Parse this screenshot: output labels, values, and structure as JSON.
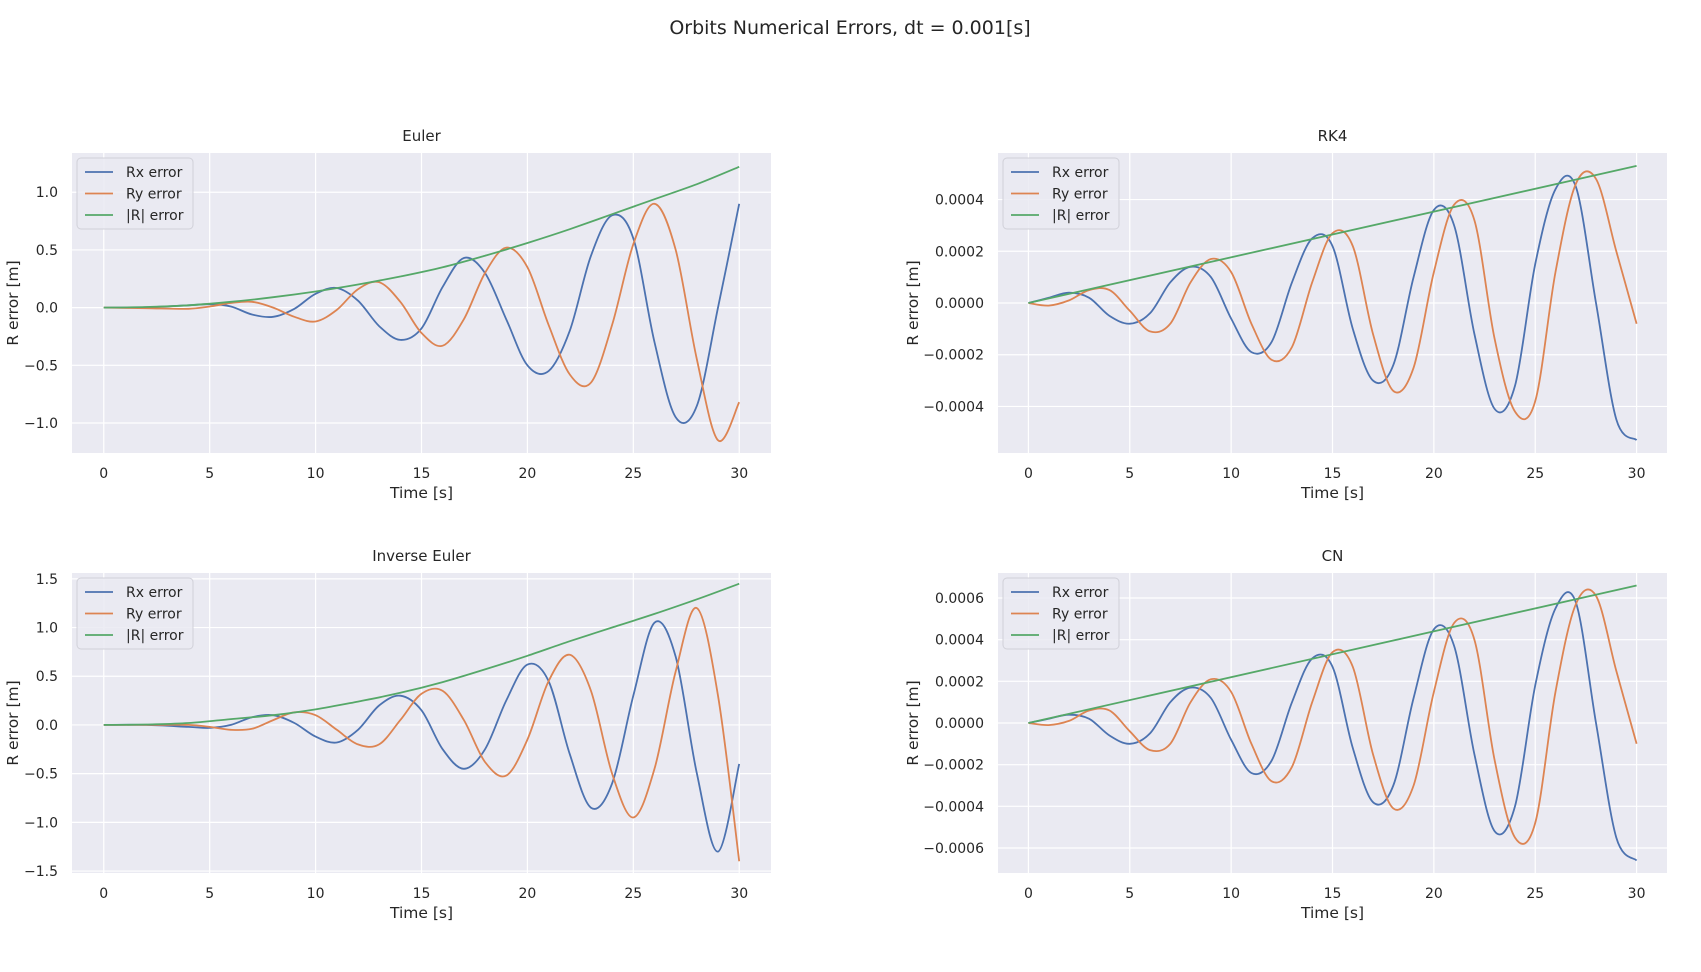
{
  "figure": {
    "suptitle": "Orbits Numerical Errors, dt = 0.001[s]"
  },
  "colors": {
    "rx": "#4c72b0",
    "ry": "#dd8452",
    "r": "#55a868",
    "axes_bg": "#eaeaf2",
    "grid": "#ffffff"
  },
  "chart_data": [
    {
      "type": "line",
      "title": "Euler",
      "xlabel": "Time [s]",
      "ylabel": "R error [m]",
      "xlim": [
        -1.5,
        31.5
      ],
      "ylim": [
        -1.26,
        1.34
      ],
      "xticks": [
        0,
        5,
        10,
        15,
        20,
        25,
        30
      ],
      "xtick_labels": [
        "0",
        "5",
        "10",
        "15",
        "20",
        "25",
        "30"
      ],
      "yticks": [
        -1.0,
        -0.5,
        0.0,
        0.5,
        1.0
      ],
      "ytick_labels": [
        "−1.0",
        "−0.5",
        "0.0",
        "0.5",
        "1.0"
      ],
      "grid": true,
      "legend": "top-left",
      "series": [
        {
          "name": "Rx error",
          "x": [
            0,
            2,
            4,
            5,
            6,
            7,
            8,
            9,
            10,
            11,
            12,
            13,
            14,
            15,
            16,
            17,
            18,
            19,
            20,
            21,
            22,
            23,
            24,
            25,
            26,
            27,
            28,
            29,
            30
          ],
          "y": [
            0,
            0.003,
            0.02,
            0.03,
            0.01,
            -0.06,
            -0.08,
            -0.01,
            0.12,
            0.17,
            0.06,
            -0.16,
            -0.28,
            -0.18,
            0.18,
            0.43,
            0.3,
            -0.1,
            -0.5,
            -0.55,
            -0.2,
            0.45,
            0.8,
            0.6,
            -0.3,
            -0.95,
            -0.85,
            0.0,
            0.9
          ]
        },
        {
          "name": "Ry error",
          "x": [
            0,
            2,
            4,
            5,
            6,
            7,
            8,
            9,
            10,
            11,
            12,
            13,
            14,
            15,
            16,
            17,
            18,
            19,
            20,
            21,
            22,
            23,
            24,
            25,
            26,
            27,
            28,
            29,
            30
          ],
          "y": [
            0,
            -0.005,
            -0.01,
            0.01,
            0.04,
            0.05,
            0.0,
            -0.08,
            -0.12,
            -0.02,
            0.16,
            0.22,
            0.05,
            -0.22,
            -0.33,
            -0.1,
            0.3,
            0.52,
            0.35,
            -0.15,
            -0.58,
            -0.65,
            -0.15,
            0.55,
            0.9,
            0.5,
            -0.45,
            -1.15,
            -0.82
          ]
        },
        {
          "name": "|R|  error",
          "x": [
            0,
            2,
            4,
            6,
            8,
            10,
            12,
            14,
            16,
            18,
            20,
            22,
            24,
            26,
            28,
            30
          ],
          "y": [
            0,
            0.005,
            0.02,
            0.05,
            0.09,
            0.14,
            0.2,
            0.27,
            0.35,
            0.45,
            0.56,
            0.68,
            0.81,
            0.94,
            1.07,
            1.22
          ]
        }
      ]
    },
    {
      "type": "line",
      "title": "RK4",
      "xlabel": "Time [s]",
      "ylabel": "R error [m]",
      "xlim": [
        -1.5,
        31.5
      ],
      "ylim": [
        -0.00058,
        0.00058
      ],
      "xticks": [
        0,
        5,
        10,
        15,
        20,
        25,
        30
      ],
      "xtick_labels": [
        "0",
        "5",
        "10",
        "15",
        "20",
        "25",
        "30"
      ],
      "yticks": [
        -0.0004,
        -0.0002,
        0.0,
        0.0002,
        0.0004
      ],
      "ytick_labels": [
        "−0.0004",
        "−0.0002",
        "0.0000",
        "0.0002",
        "0.0004"
      ],
      "grid": true,
      "legend": "top-left",
      "series": [
        {
          "name": "Rx error",
          "x": [
            0,
            1,
            2,
            3,
            4,
            5,
            6,
            7,
            8,
            9,
            10,
            11,
            12,
            13,
            14,
            15,
            16,
            17,
            18,
            19,
            20,
            21,
            22,
            23,
            24,
            25,
            26,
            27,
            28,
            29,
            30
          ],
          "y": [
            0,
            2e-05,
            4e-05,
            2e-05,
            -5e-05,
            -8e-05,
            -4e-05,
            8e-05,
            0.00014,
            0.0001,
            -6e-05,
            -0.00019,
            -0.00015,
            8e-05,
            0.00025,
            0.00022,
            -0.0001,
            -0.0003,
            -0.00024,
            0.0001,
            0.00036,
            0.0003,
            -0.00012,
            -0.00041,
            -0.00032,
            0.00015,
            0.00044,
            0.00045,
            0.0,
            -0.00045,
            -0.00053
          ]
        },
        {
          "name": "Ry error",
          "x": [
            0,
            1,
            2,
            3,
            4,
            5,
            6,
            7,
            8,
            9,
            10,
            11,
            12,
            13,
            14,
            15,
            16,
            17,
            18,
            19,
            20,
            21,
            22,
            23,
            24,
            25,
            26,
            27,
            28,
            29,
            30
          ],
          "y": [
            0,
            -1e-05,
            1e-05,
            5e-05,
            5e-05,
            -3e-05,
            -0.00011,
            -8e-05,
            8e-05,
            0.00017,
            0.00012,
            -8e-05,
            -0.00022,
            -0.00017,
            8e-05,
            0.00027,
            0.00022,
            -0.00012,
            -0.00034,
            -0.00025,
            0.00012,
            0.00038,
            0.00032,
            -0.00014,
            -0.00042,
            -0.00038,
            0.00012,
            0.00046,
            0.00048,
            0.0002,
            -8e-05
          ]
        },
        {
          "name": "|R|  error",
          "x": [
            0,
            30
          ],
          "y": [
            0,
            0.00053
          ]
        }
      ]
    },
    {
      "type": "line",
      "title": "Inverse Euler",
      "xlabel": "Time [s]",
      "ylabel": "R error [m]",
      "xlim": [
        -1.5,
        31.5
      ],
      "ylim": [
        -1.52,
        1.56
      ],
      "xticks": [
        0,
        5,
        10,
        15,
        20,
        25,
        30
      ],
      "xtick_labels": [
        "0",
        "5",
        "10",
        "15",
        "20",
        "25",
        "30"
      ],
      "yticks": [
        -1.5,
        -1.0,
        -0.5,
        0.0,
        0.5,
        1.0,
        1.5
      ],
      "ytick_labels": [
        "−1.5",
        "−1.0",
        "−0.5",
        "0.0",
        "0.5",
        "1.0",
        "1.5"
      ],
      "grid": true,
      "legend": "top-left",
      "series": [
        {
          "name": "Rx error",
          "x": [
            0,
            2,
            4,
            5,
            6,
            7,
            8,
            9,
            10,
            11,
            12,
            13,
            14,
            15,
            16,
            17,
            18,
            19,
            20,
            21,
            22,
            23,
            24,
            25,
            26,
            27,
            28,
            29,
            30
          ],
          "y": [
            0,
            0.0,
            -0.02,
            -0.03,
            0.0,
            0.08,
            0.1,
            0.02,
            -0.12,
            -0.18,
            -0.05,
            0.2,
            0.3,
            0.15,
            -0.25,
            -0.45,
            -0.25,
            0.25,
            0.62,
            0.45,
            -0.3,
            -0.85,
            -0.6,
            0.3,
            1.05,
            0.7,
            -0.5,
            -1.3,
            -0.4
          ]
        },
        {
          "name": "Ry error",
          "x": [
            0,
            2,
            4,
            5,
            6,
            7,
            8,
            9,
            10,
            11,
            12,
            13,
            14,
            15,
            16,
            17,
            18,
            19,
            20,
            21,
            22,
            23,
            24,
            25,
            26,
            27,
            28,
            29,
            30
          ],
          "y": [
            0,
            0.0,
            0.0,
            -0.02,
            -0.05,
            -0.04,
            0.05,
            0.13,
            0.1,
            -0.05,
            -0.2,
            -0.2,
            0.05,
            0.32,
            0.35,
            0.05,
            -0.38,
            -0.52,
            -0.15,
            0.45,
            0.72,
            0.35,
            -0.5,
            -0.95,
            -0.45,
            0.55,
            1.2,
            0.3,
            -1.4
          ]
        },
        {
          "name": "|R|  error",
          "x": [
            0,
            2,
            4,
            6,
            8,
            10,
            12,
            14,
            16,
            18,
            20,
            22,
            24,
            26,
            28,
            30
          ],
          "y": [
            0,
            0.005,
            0.02,
            0.06,
            0.1,
            0.16,
            0.24,
            0.33,
            0.44,
            0.57,
            0.71,
            0.86,
            1.0,
            1.14,
            1.29,
            1.45
          ]
        }
      ]
    },
    {
      "type": "line",
      "title": "CN",
      "xlabel": "Time [s]",
      "ylabel": "R error [m]",
      "xlim": [
        -1.5,
        31.5
      ],
      "ylim": [
        -0.00072,
        0.00072
      ],
      "xticks": [
        0,
        5,
        10,
        15,
        20,
        25,
        30
      ],
      "xtick_labels": [
        "0",
        "5",
        "10",
        "15",
        "20",
        "25",
        "30"
      ],
      "yticks": [
        -0.0006,
        -0.0004,
        -0.0002,
        0.0,
        0.0002,
        0.0004,
        0.0006
      ],
      "ytick_labels": [
        "−0.0006",
        "−0.0004",
        "−0.0002",
        "0.0000",
        "0.0002",
        "0.0004",
        "0.0006"
      ],
      "grid": true,
      "legend": "top-left",
      "series": [
        {
          "name": "Rx error",
          "x": [
            0,
            1,
            2,
            3,
            4,
            5,
            6,
            7,
            8,
            9,
            10,
            11,
            12,
            13,
            14,
            15,
            16,
            17,
            18,
            19,
            20,
            21,
            22,
            23,
            24,
            25,
            26,
            27,
            28,
            29,
            30
          ],
          "y": [
            0,
            2e-05,
            4e-05,
            2e-05,
            -6e-05,
            -0.0001,
            -5e-05,
            0.0001,
            0.00017,
            0.00012,
            -8e-05,
            -0.00024,
            -0.00018,
            0.0001,
            0.00031,
            0.00027,
            -0.00012,
            -0.00038,
            -0.0003,
            0.00012,
            0.00045,
            0.00037,
            -0.00015,
            -0.00052,
            -0.0004,
            0.00018,
            0.00055,
            0.00058,
            0.0,
            -0.00055,
            -0.00066
          ]
        },
        {
          "name": "Ry error",
          "x": [
            0,
            1,
            2,
            3,
            4,
            5,
            6,
            7,
            8,
            9,
            10,
            11,
            12,
            13,
            14,
            15,
            16,
            17,
            18,
            19,
            20,
            21,
            22,
            23,
            24,
            25,
            26,
            27,
            28,
            29,
            30
          ],
          "y": [
            0,
            -1e-05,
            1e-05,
            6e-05,
            6e-05,
            -4e-05,
            -0.00013,
            -0.0001,
            0.0001,
            0.00021,
            0.00015,
            -0.0001,
            -0.00028,
            -0.00021,
            0.0001,
            0.00034,
            0.00027,
            -0.00015,
            -0.00041,
            -0.0003,
            0.00015,
            0.00048,
            0.0004,
            -0.00018,
            -0.00055,
            -0.00048,
            0.00015,
            0.00057,
            0.00061,
            0.00025,
            -0.0001
          ]
        },
        {
          "name": "|R|  error",
          "x": [
            0,
            30
          ],
          "y": [
            0,
            0.00066
          ]
        }
      ]
    }
  ]
}
